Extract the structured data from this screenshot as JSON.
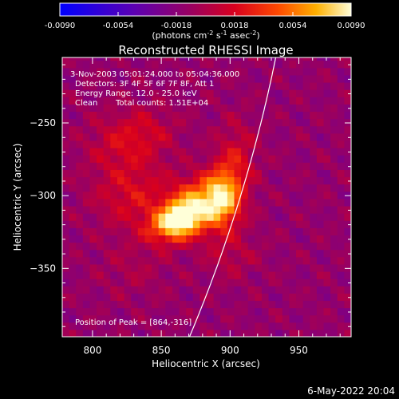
{
  "chart_data": {
    "type": "heatmap",
    "title": "Reconstructed RHESSI Image",
    "xlabel": "Heliocentric X (arcsec)",
    "ylabel": "Heliocentric Y (arcsec)",
    "xlim": [
      778,
      988
    ],
    "ylim": [
      -397,
      -205
    ],
    "xticks": [
      800,
      850,
      900,
      950
    ],
    "yticks": [
      -250,
      -300,
      -350
    ],
    "colorbar": {
      "min": -0.009,
      "max": 0.009,
      "ticks": [
        "-0.0090",
        "-0.0054",
        "-0.0018",
        "0.0018",
        "0.0054",
        "0.0090"
      ],
      "unit_text": "(photons cm",
      "unit_sup1": "-2",
      "unit_mid": " s",
      "unit_sup2": "-1",
      "unit_mid2": " asec",
      "unit_sup3": "-2",
      "unit_end": ")"
    },
    "annotations": {
      "time_range": "3-Nov-2003 05:01:24.000 to 05:04:36.000",
      "detectors": "Detectors: 3F 4F 5F 6F 7F 8F, Att 1",
      "energy": "Energy Range: 12.0 - 25.0 keV",
      "clean_label": "Clean",
      "total_counts": "Total counts: 1.51E+04",
      "peak": "Position of Peak = [864,-316]"
    },
    "peak_position": [
      864,
      -316
    ],
    "emission_blobs": [
      {
        "x": 864,
        "y": -316,
        "peak": 0.009,
        "sx": 10,
        "sy": 9
      },
      {
        "x": 880,
        "y": -305,
        "peak": 0.0072,
        "sx": 14,
        "sy": 12
      },
      {
        "x": 895,
        "y": -300,
        "peak": 0.0064,
        "sx": 9,
        "sy": 14
      },
      {
        "x": 850,
        "y": -322,
        "peak": 0.004,
        "sx": 10,
        "sy": 8
      },
      {
        "x": 830,
        "y": -300,
        "peak": 0.003,
        "sx": 20,
        "sy": 16
      },
      {
        "x": 820,
        "y": -265,
        "peak": 0.0022,
        "sx": 18,
        "sy": 14
      },
      {
        "x": 905,
        "y": -275,
        "peak": 0.0028,
        "sx": 10,
        "sy": 18
      },
      {
        "x": 840,
        "y": -255,
        "peak": 0.0018,
        "sx": 16,
        "sy": 12
      },
      {
        "x": 900,
        "y": -340,
        "peak": 0.0016,
        "sx": 14,
        "sy": 12
      },
      {
        "x": 830,
        "y": -350,
        "peak": 0.001,
        "sx": 18,
        "sy": 14
      }
    ],
    "limb": "solar limb arc"
  },
  "footer": {
    "date": "6-May-2022 20:04"
  }
}
